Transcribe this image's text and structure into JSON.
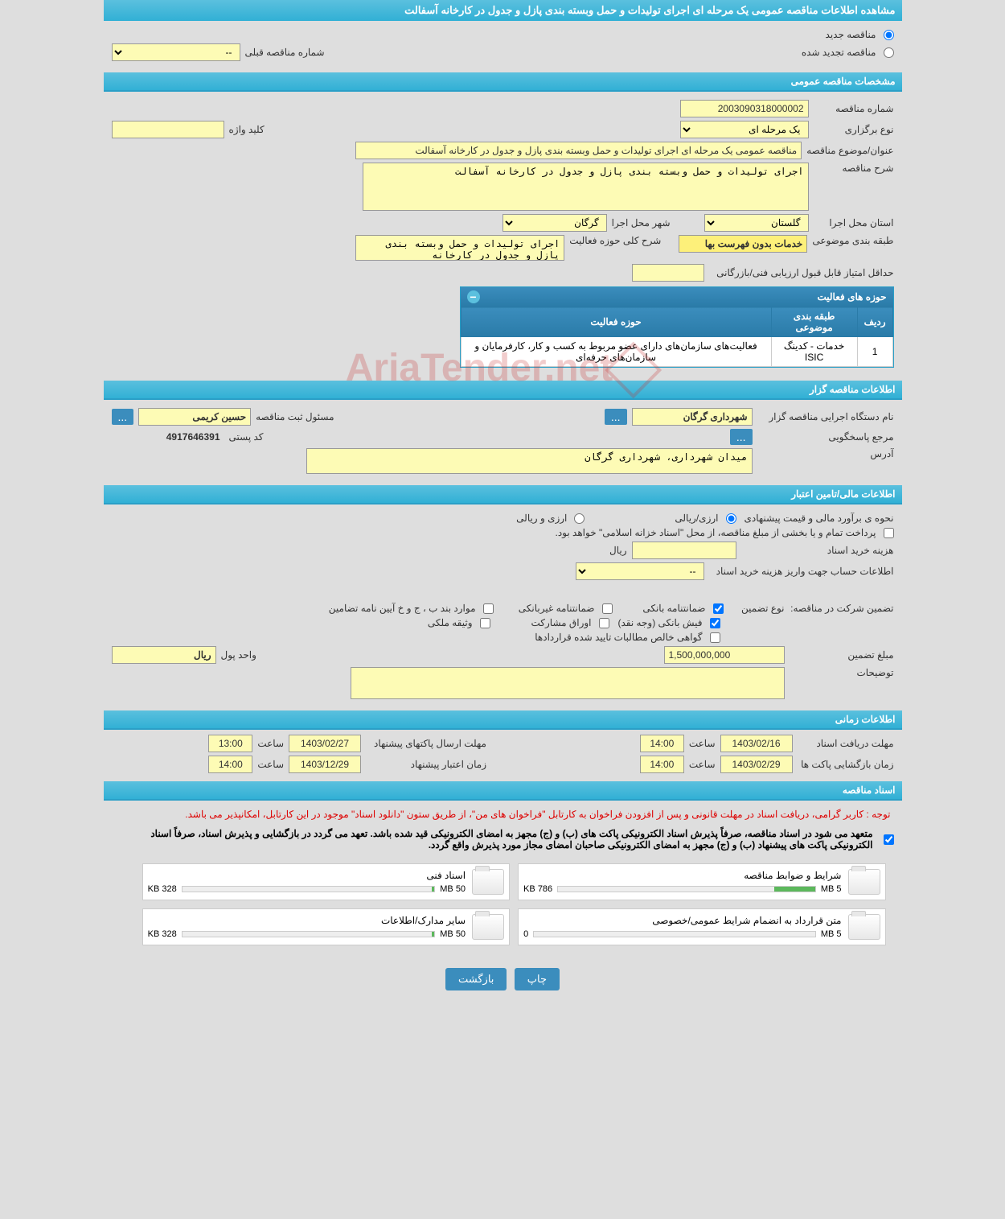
{
  "header": {
    "title": "مشاهده اطلاعات مناقصه عمومی یک مرحله ای اجرای تولیدات و حمل وبسته بندی پازل و جدول در کارخانه آسفالت"
  },
  "tender_type": {
    "new_label": "مناقصه جدید",
    "renewed_label": "مناقصه تجدید شده",
    "prev_number_label": "شماره مناقصه قبلی",
    "prev_number_value": "--"
  },
  "general_spec": {
    "section_title": "مشخصات مناقصه عمومی",
    "number_label": "شماره مناقصه",
    "number_value": "2003090318000002",
    "holding_type_label": "نوع برگزاری",
    "holding_type_value": "یک مرحله ای",
    "keyword_label": "کلید واژه",
    "keyword_value": "",
    "subject_label": "عنوان/موضوع مناقصه",
    "subject_value": "مناقصه عمومی یک مرحله ای اجرای تولیدات و حمل وبسته بندی پازل و جدول در کارخانه آسفالت",
    "description_label": "شرح مناقصه",
    "description_value": "اجرای تولیدات و حمل وبسته بندی پازل و جدول در کارخانه آسفالت",
    "province_label": "استان محل اجرا",
    "province_value": "گلستان",
    "city_label": "شهر محل اجرا",
    "city_value": "گرگان",
    "classification_label": "طبقه بندی موضوعی",
    "classification_value": "خدمات بدون فهرست بها",
    "activity_desc_label": "شرح کلی حوزه فعالیت",
    "activity_desc_value": "اجرای تولیدات و حمل وبسته بندی پازل و جدول در کارخانه",
    "min_score_label": "حداقل امتیاز قابل قبول ارزیابی فنی/بازرگانی",
    "min_score_value": ""
  },
  "activity_areas": {
    "panel_title": "حوزه های فعالیت",
    "col_row": "ردیف",
    "col_class": "طبقه بندی موضوعی",
    "col_area": "حوزه فعالیت",
    "rows": [
      {
        "idx": "1",
        "classification": "خدمات - کدینگ ISIC",
        "area": "فعالیت‌های سازمان‌های دارای عضو مربوط به کسب و کار، کارفرمایان و سازمان‌های حرفه‌ای"
      }
    ]
  },
  "tenderer_info": {
    "section_title": "اطلاعات مناقصه گزار",
    "org_label": "نام دستگاه اجرایی مناقصه گزار",
    "org_value": "شهرداری گرگان",
    "registrar_label": "مسئول ثبت مناقصه",
    "registrar_value": "حسین کریمی",
    "responder_label": "مرجع پاسخگویی",
    "postal_label": "کد پستی",
    "postal_value": "4917646391",
    "address_label": "آدرس",
    "address_value": "میدان شهرداری، شهرداری گرگان"
  },
  "financial": {
    "section_title": "اطلاعات مالی/تامین اعتبار",
    "estimate_label": "نحوه ی برآورد مالی و قیمت پیشنهادی",
    "currency_rial": "ارزی/ریالی",
    "currency_fx": "ارزی و ریالی",
    "treasury_note": "پرداخت تمام و یا بخشی از مبلغ مناقصه، از محل \"اسناد خزانه اسلامی\" خواهد بود.",
    "doc_cost_label": "هزینه خرید اسناد",
    "doc_cost_value": "",
    "rial_unit": "ریال",
    "account_label": "اطلاعات حساب جهت واریز هزینه خرید اسناد",
    "account_value": "--",
    "guarantee_label": "تضمین شرکت در مناقصه:",
    "guarantee_type_label": "نوع تضمین",
    "g1": "ضمانتنامه بانکی",
    "g2": "ضمانتنامه غیربانکی",
    "g3": "موارد بند ب ، ج و خ آیین نامه تضامین",
    "g4": "فیش بانکی (وجه نقد)",
    "g5": "اوراق مشارکت",
    "g6": "وثیقه ملکی",
    "g7": "گواهی خالص مطالبات تایید شده قراردادها",
    "amount_label": "مبلغ تضمین",
    "amount_value": "1,500,000,000",
    "unit_label": "واحد پول",
    "unit_value": "ریال",
    "notes_label": "توضیحات",
    "notes_value": ""
  },
  "timing": {
    "section_title": "اطلاعات زمانی",
    "receive_label": "مهلت دریافت اسناد",
    "receive_date": "1403/02/16",
    "receive_time": "14:00",
    "time_label": "ساعت",
    "send_label": "مهلت ارسال پاکتهای پیشنهاد",
    "send_date": "1403/02/27",
    "send_time": "13:00",
    "open_label": "زمان بازگشایی پاکت ها",
    "open_date": "1403/02/29",
    "open_time": "14:00",
    "validity_label": "زمان اعتبار پیشنهاد",
    "validity_date": "1403/12/29",
    "validity_time": "14:00"
  },
  "documents": {
    "section_title": "اسناد مناقصه",
    "notice1": "توجه : کاربر گرامی، دریافت اسناد در مهلت قانونی و پس از افزودن فراخوان به کارتابل \"فراخوان های من\"، از طریق ستون \"دانلود اسناد\" موجود در این کارتابل، امکانپذیر می باشد.",
    "notice2": "متعهد می شود در اسناد مناقصه، صرفاً پذیرش اسناد الکترونیکی پاکت های (ب) و (ج) مجهز به امضای الکترونیکی قید شده باشد. تعهد می گردد در بازگشایی و پذیرش اسناد، صرفاً اسناد الکترونیکی پاکت های پیشنهاد (ب) و (ج) مجهز به امضای الکترونیکی صاحبان امضای مجاز مورد پذیرش واقع گردد.",
    "docs": [
      {
        "title": "شرایط و ضوابط مناقصه",
        "size": "786 KB",
        "max": "5 MB",
        "pct": 16
      },
      {
        "title": "اسناد فنی",
        "size": "328 KB",
        "max": "50 MB",
        "pct": 1
      },
      {
        "title": "متن قرارداد به انضمام شرایط عمومی/خصوصی",
        "size": "0",
        "max": "5 MB",
        "pct": 0
      },
      {
        "title": "سایر مدارک/اطلاعات",
        "size": "328 KB",
        "max": "50 MB",
        "pct": 1
      }
    ]
  },
  "footer": {
    "print": "چاپ",
    "back": "بازگشت"
  },
  "watermark": "AriaTender.net"
}
